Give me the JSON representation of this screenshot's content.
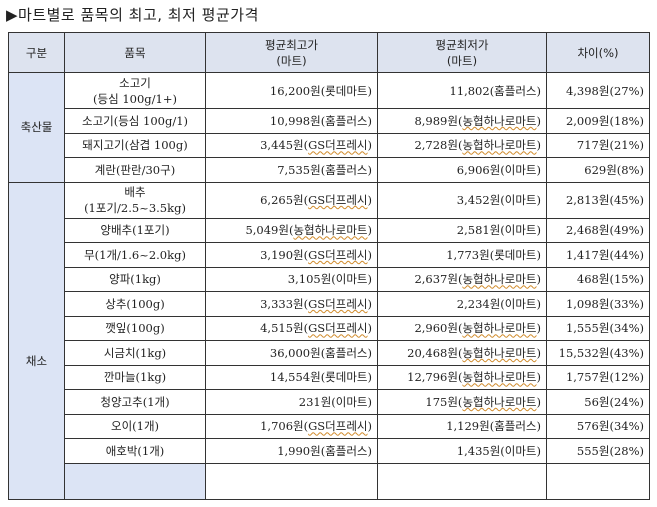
{
  "title": "▶마트별로 품목의 최고, 최저 평균가격",
  "headers": {
    "category": "구분",
    "item": "품목",
    "max_line1": "평균최고가",
    "max_line2": "(마트)",
    "min_line1": "평균최저가",
    "min_line2": "(마트)",
    "diff": "차이(%)"
  },
  "categories": {
    "livestock": "축산물",
    "vegetable": "채소"
  },
  "rows": [
    {
      "item1": "소고기",
      "item2": "(등심  100g/1+)",
      "max": "16,200원(롯데마트)",
      "min": "11,802(홈플러스)",
      "diff": "4,398원(27%)"
    },
    {
      "item1": "소고기(등심  100g/1)",
      "max": "10,998원(홈플러스)",
      "min": "8,989원(농협하나로마트)",
      "diff": "2,009원(18%)"
    },
    {
      "item1": "돼지고기(삼겹  100g)",
      "max": "3,445원(GS더프레시)",
      "min": "2,728원(농협하나로마트)",
      "diff": "717원(21%)"
    },
    {
      "item1": "계란(판란/30구)",
      "max": "7,535원(홈플러스)",
      "min": "6,906원(이마트)",
      "diff": "629원(8%)"
    },
    {
      "item1": "배추",
      "item2": "(1포기/2.5~3.5kg)",
      "max": "6,265원(GS더프레시)",
      "min": "3,452원(이마트)",
      "diff": "2,813원(45%)"
    },
    {
      "item1": "양배추(1포기)",
      "max": "5,049원(농협하나로마트)",
      "min": "2,581원(이마트)",
      "diff": "2,468원(49%)"
    },
    {
      "item1": "무(1개/1.6~2.0kg)",
      "max": "3,190원(GS더프레시)",
      "min": "1,773원(롯데마트)",
      "diff": "1,417원(44%)"
    },
    {
      "item1": "양파(1kg)",
      "max": "3,105원(이마트)",
      "min": "2,637원(농협하나로마트)",
      "diff": "468원(15%)"
    },
    {
      "item1": "상추(100g)",
      "max": "3,333원(GS더프레시)",
      "min": "2,234원(이마트)",
      "diff": "1,098원(33%)"
    },
    {
      "item1": "깻잎(100g)",
      "max": "4,515원(GS더프레시)",
      "min": "2,960원(농협하나로마트)",
      "diff": "1,555원(34%)"
    },
    {
      "item1": "시금치(1kg)",
      "max": "36,000원(홈플러스)",
      "min": "20,468원(농협하나로마트)",
      "diff": "15,532원(43%)"
    },
    {
      "item1": "깐마늘(1kg)",
      "max": "14,554원(롯데마트)",
      "min": "12,796원(농협하나로마트)",
      "diff": "1,757원(12%)"
    },
    {
      "item1": "청양고추(1개)",
      "max": "231원(이마트)",
      "min": "175원(농협하나로마트)",
      "diff": "56원(24%)"
    },
    {
      "item1": "오이(1개)",
      "max": "1,706원(GS더프레시)",
      "min": "1,129원(홈플러스)",
      "diff": "576원(34%)"
    },
    {
      "item1": "애호박(1개)",
      "max": "1,990원(홈플러스)",
      "min": "1,435원(이마트)",
      "diff": "555원(28%)"
    }
  ]
}
